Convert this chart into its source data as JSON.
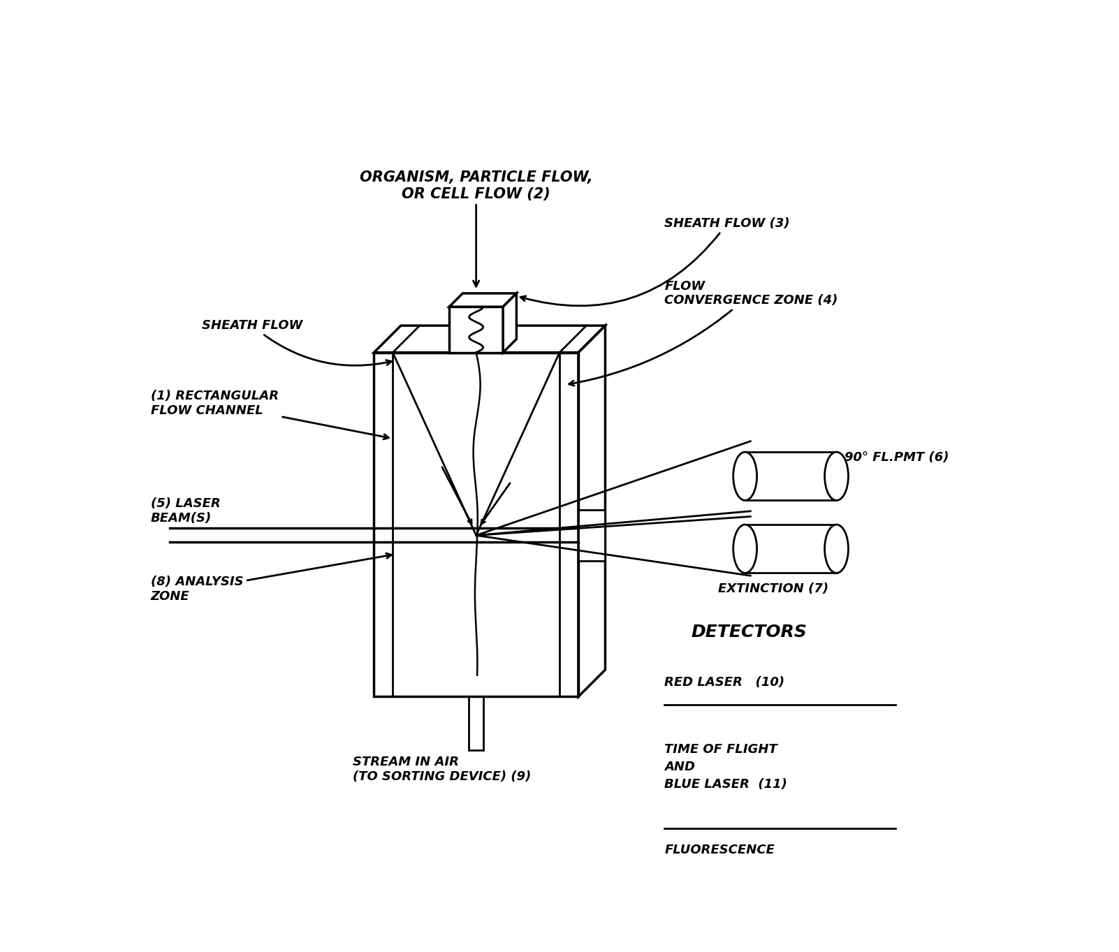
{
  "bg_color": "#ffffff",
  "line_color": "#000000",
  "fig_width": 16.02,
  "fig_height": 13.63,
  "labels": {
    "organism_flow": "ORGANISM, PARTICLE FLOW,\nOR CELL FLOW (2)",
    "sheath_flow_left": "SHEATH FLOW",
    "rect_flow_channel": "(1) RECTANGULAR\nFLOW CHANNEL",
    "laser_beam": "(5) LASER\nBEAM(S)",
    "analysis_zone": "(8) ANALYSIS\nZONE",
    "sheath_flow_right": "SHEATH FLOW (3)",
    "flow_convergence": "FLOW\nCONVERGENCE ZONE (4)",
    "pmt": "90° FL.PMT (6)",
    "extinction": "EXTINCTION (7)",
    "stream_in_air": "STREAM IN AIR\n(TO SORTING DEVICE) (9)",
    "detectors": "DETECTORS",
    "red_laser": "RED LASER   (10)",
    "tof": "TIME OF FLIGHT\nAND\nBLUE LASER  (11)",
    "fluorescence": "FLUORESCENCE"
  }
}
